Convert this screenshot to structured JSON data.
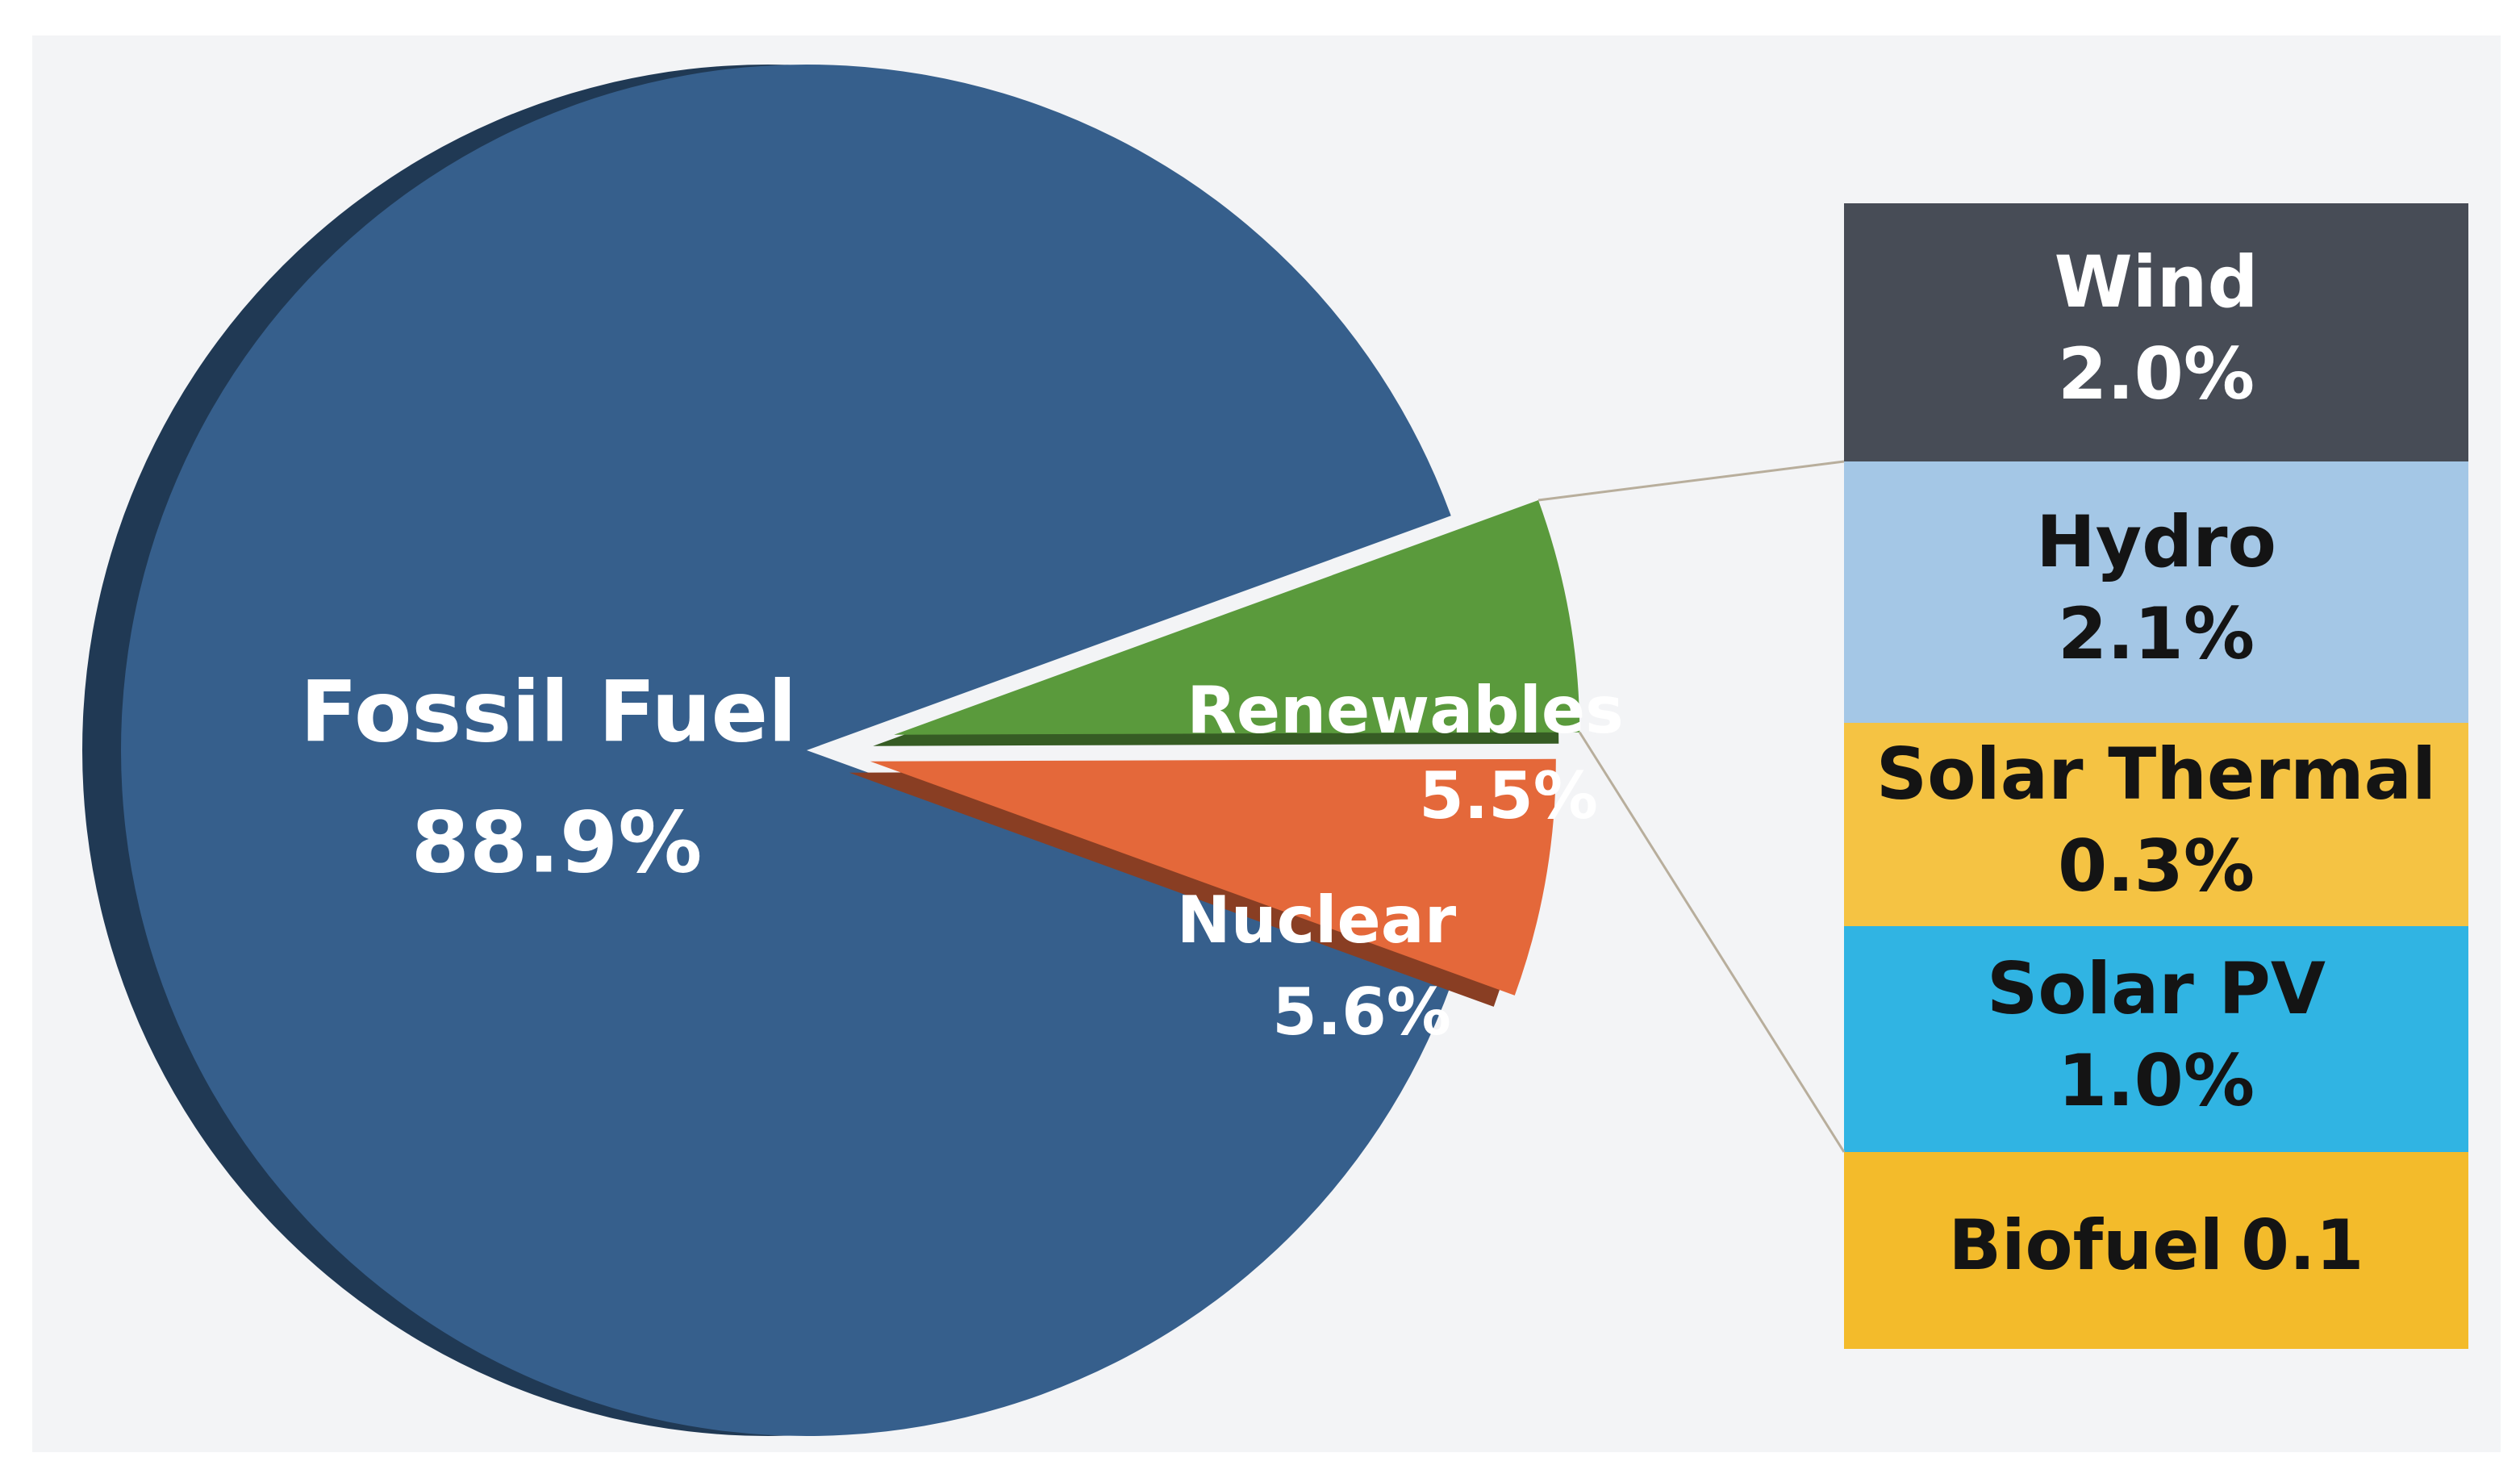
{
  "chart_data": [
    {
      "type": "pie",
      "categories": [
        "Fossil Fuel",
        "Renewables",
        "Nuclear"
      ],
      "values": [
        88.9,
        5.5,
        5.6
      ],
      "value_labels": [
        "88.9%",
        "5.5%",
        "5.6%"
      ],
      "colors": [
        "#365f8c",
        "#5a9a3c",
        "#e4683a"
      ]
    },
    {
      "type": "stacked-bar",
      "categories": [
        "Wind",
        "Hydro",
        "Solar Thermal",
        "Solar PV",
        "Biofuel"
      ],
      "values": [
        2.0,
        2.1,
        0.3,
        1.0,
        0.1
      ],
      "value_labels": [
        "2.0%",
        "2.1%",
        "0.3%",
        "1.0%",
        "0.1"
      ],
      "colors": [
        "#474c56",
        "#a4c7e6",
        "#f5c343",
        "#30b4e3",
        "#f3bb2b"
      ]
    }
  ]
}
